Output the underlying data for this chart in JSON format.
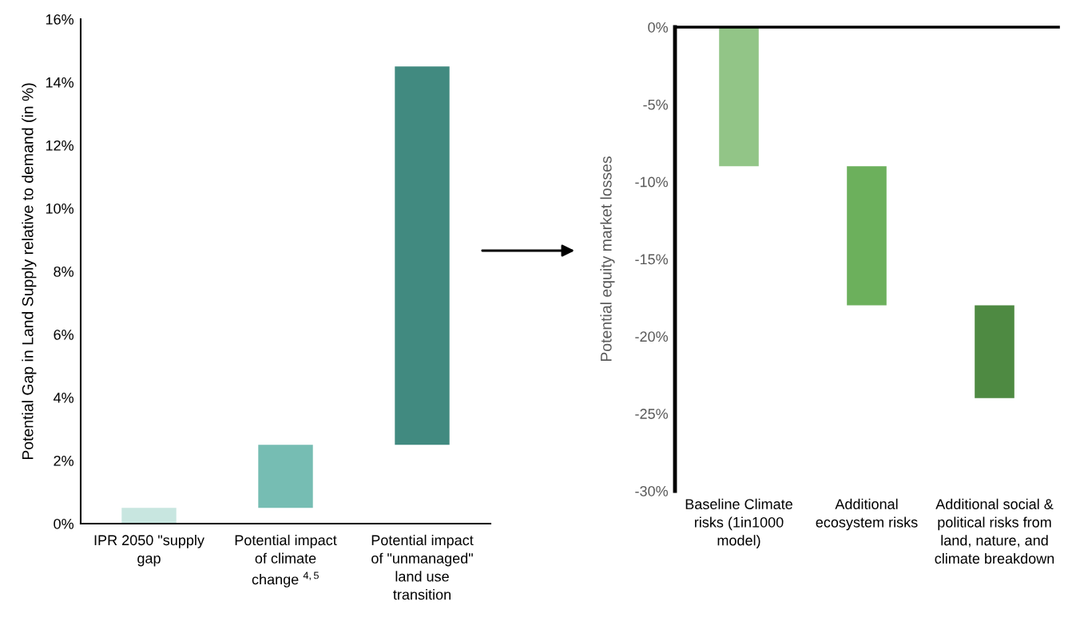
{
  "chart_data": [
    {
      "type": "bar",
      "categories": [
        "IPR 2050 \"supply\ngap",
        "Potential impact\nof climate\nchange $^{4,5}$",
        "Potential impact\nof \"unmanaged\"\nland use\ntransition"
      ],
      "base": [
        0,
        0.5,
        2.5
      ],
      "values": [
        0.5,
        2,
        12
      ],
      "colors": [
        "#c8e6e0",
        "#76bdb3",
        "#418a80"
      ],
      "ylabel": "Potential Gap in Land Supply relative to demand (in %)",
      "ylim": [
        0,
        16
      ],
      "yticks": [
        {
          "value": 0,
          "label": "0%"
        },
        {
          "value": 2,
          "label": "2%"
        },
        {
          "value": 4,
          "label": "4%"
        },
        {
          "value": 6,
          "label": "6%"
        },
        {
          "value": 8,
          "label": "8%"
        },
        {
          "value": 10,
          "label": "10%"
        },
        {
          "value": 12,
          "label": "12%"
        },
        {
          "value": 14,
          "label": "14%"
        },
        {
          "value": 16,
          "label": "16%"
        }
      ]
    },
    {
      "type": "bar",
      "categories": [
        "Baseline Climate\nrisks (1in1000\nmodel)",
        "Additional\necosystem risks",
        "Additional social &\npolitical risks from\nland, nature, and\nclimate breakdown"
      ],
      "base": [
        0,
        -9,
        -18
      ],
      "values": [
        -9,
        -9,
        -6
      ],
      "colors": [
        "#92c587",
        "#6cb05c",
        "#4e8a42"
      ],
      "ylabel": "Potential equity market losses",
      "ylim": [
        -30,
        0
      ],
      "yticks": [
        {
          "value": 0,
          "label": "0%"
        },
        {
          "value": -5,
          "label": "-5%"
        },
        {
          "value": -10,
          "label": "-10%"
        },
        {
          "value": -15,
          "label": "-15%"
        },
        {
          "value": -20,
          "label": "-20%"
        },
        {
          "value": -25,
          "label": "-25%"
        },
        {
          "value": -30,
          "label": "-30%"
        }
      ]
    }
  ]
}
